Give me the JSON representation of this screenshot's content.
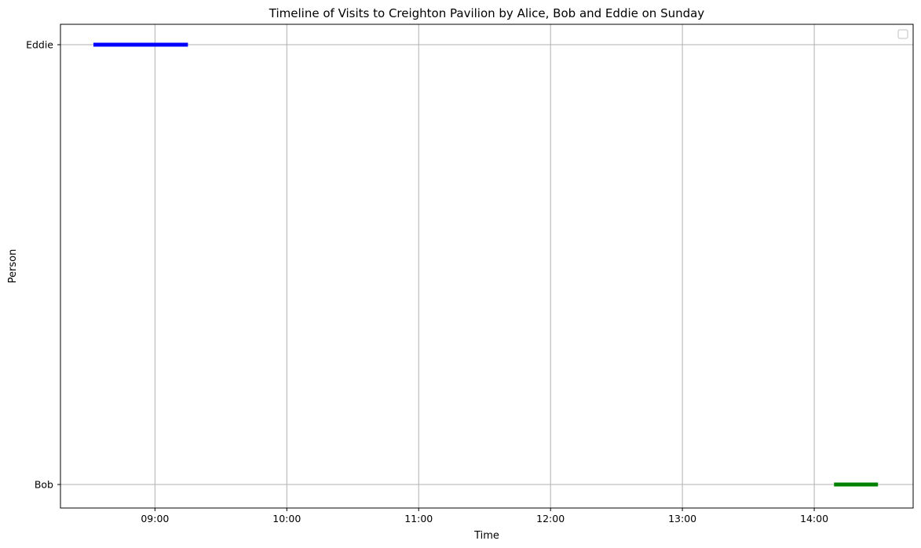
{
  "chart_data": {
    "type": "timeline",
    "title": "Timeline of Visits to Creighton Pavilion by Alice, Bob and Eddie on Sunday",
    "xlabel": "Time",
    "ylabel": "Person",
    "categories": [
      "Bob",
      "Eddie"
    ],
    "x_ticks": [
      "09:00",
      "10:00",
      "11:00",
      "12:00",
      "13:00",
      "14:00"
    ],
    "xlim": [
      "08:17",
      "14:45"
    ],
    "grid": true,
    "legend": {
      "placement": "top-right",
      "entries": []
    },
    "series": [
      {
        "category": "Eddie",
        "start": "08:32",
        "end": "09:15",
        "color": "#0000ff"
      },
      {
        "category": "Bob",
        "start": "14:09",
        "end": "14:29",
        "color": "#008000"
      }
    ]
  }
}
